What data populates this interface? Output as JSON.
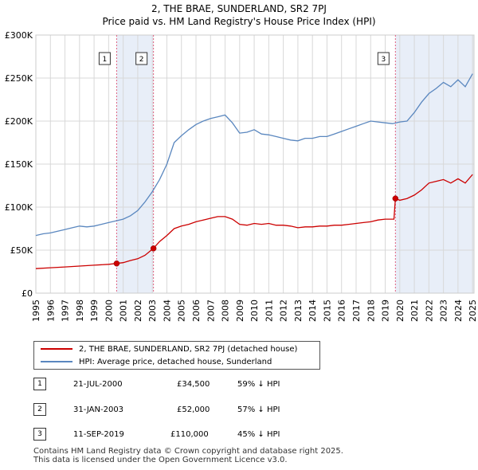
{
  "chart_data": {
    "type": "line",
    "title": "2, THE BRAE, SUNDERLAND, SR2 7PJ",
    "subtitle": "Price paid vs. HM Land Registry's House Price Index (HPI)",
    "xlabel": "",
    "ylabel": "",
    "xlim": [
      1995,
      2025.1
    ],
    "ylim": [
      0,
      300000
    ],
    "x_ticks": [
      "1995",
      "1996",
      "1997",
      "1998",
      "1999",
      "2000",
      "2001",
      "2002",
      "2003",
      "2004",
      "2005",
      "2006",
      "2007",
      "2008",
      "2009",
      "2010",
      "2011",
      "2012",
      "2013",
      "2014",
      "2015",
      "2016",
      "2017",
      "2018",
      "2019",
      "2020",
      "2021",
      "2022",
      "2023",
      "2024",
      "2025"
    ],
    "y_ticks": [
      {
        "value": 0,
        "label": "£0"
      },
      {
        "value": 50000,
        "label": "£50K"
      },
      {
        "value": 100000,
        "label": "£100K"
      },
      {
        "value": 150000,
        "label": "£150K"
      },
      {
        "value": 200000,
        "label": "£200K"
      },
      {
        "value": 250000,
        "label": "£250K"
      },
      {
        "value": 300000,
        "label": "£300K"
      }
    ],
    "grid": true,
    "series": [
      {
        "name": "2, THE BRAE, SUNDERLAND, SR2 7PJ (detached house)",
        "color": "#cc0000",
        "x": [
          1995.0,
          1996.0,
          1997.0,
          1998.0,
          1999.0,
          2000.0,
          2000.55,
          2001.0,
          2001.5,
          2002.0,
          2002.5,
          2003.08,
          2003.5,
          2004.0,
          2004.5,
          2005.0,
          2005.5,
          2006.0,
          2006.5,
          2007.0,
          2007.5,
          2008.0,
          2008.5,
          2009.0,
          2009.5,
          2010.0,
          2010.5,
          2011.0,
          2011.5,
          2012.0,
          2012.5,
          2013.0,
          2013.5,
          2014.0,
          2014.5,
          2015.0,
          2015.5,
          2016.0,
          2016.5,
          2017.0,
          2017.5,
          2018.0,
          2018.5,
          2019.0,
          2019.6,
          2019.7,
          2020.0,
          2020.5,
          2021.0,
          2021.5,
          2022.0,
          2022.5,
          2023.0,
          2023.5,
          2024.0,
          2024.5,
          2025.0
        ],
        "y": [
          28500,
          29500,
          30500,
          31500,
          32500,
          33500,
          34500,
          35500,
          38000,
          40000,
          44000,
          52000,
          60000,
          67000,
          75000,
          78000,
          80000,
          83000,
          85000,
          87000,
          89000,
          89000,
          86000,
          80000,
          79000,
          81000,
          80000,
          81000,
          79000,
          79000,
          78000,
          76000,
          77000,
          77000,
          78000,
          78000,
          79000,
          79000,
          80000,
          81000,
          82000,
          83000,
          85000,
          86000,
          86000,
          110000,
          108000,
          110000,
          114000,
          120000,
          128000,
          130000,
          132000,
          128000,
          133000,
          128000,
          138000
        ]
      },
      {
        "name": "HPI: Average price, detached house, Sunderland",
        "color": "#5a87bf",
        "x": [
          1995.0,
          1995.5,
          1996.0,
          1996.5,
          1997.0,
          1997.5,
          1998.0,
          1998.5,
          1999.0,
          1999.5,
          2000.0,
          2000.5,
          2001.0,
          2001.5,
          2002.0,
          2002.5,
          2003.0,
          2003.5,
          2004.0,
          2004.5,
          2005.0,
          2005.5,
          2006.0,
          2006.5,
          2007.0,
          2007.5,
          2008.0,
          2008.5,
          2009.0,
          2009.5,
          2010.0,
          2010.5,
          2011.0,
          2011.5,
          2012.0,
          2012.5,
          2013.0,
          2013.5,
          2014.0,
          2014.5,
          2015.0,
          2015.5,
          2016.0,
          2016.5,
          2017.0,
          2017.5,
          2018.0,
          2018.5,
          2019.0,
          2019.5,
          2020.0,
          2020.5,
          2021.0,
          2021.5,
          2022.0,
          2022.5,
          2023.0,
          2023.5,
          2024.0,
          2024.5,
          2025.0
        ],
        "y": [
          67000,
          69000,
          70000,
          72000,
          74000,
          76000,
          78000,
          77000,
          78000,
          80000,
          82000,
          84000,
          86000,
          90000,
          96000,
          106000,
          118000,
          132000,
          150000,
          175000,
          183000,
          190000,
          196000,
          200000,
          203000,
          205000,
          207000,
          198000,
          186000,
          187000,
          190000,
          185000,
          184000,
          182000,
          180000,
          178000,
          177000,
          180000,
          180000,
          182000,
          182000,
          185000,
          188000,
          191000,
          194000,
          197000,
          200000,
          199000,
          198000,
          197000,
          199000,
          200000,
          210000,
          222000,
          232000,
          238000,
          245000,
          240000,
          248000,
          240000,
          255000
        ]
      }
    ],
    "markers": [
      {
        "label": "1",
        "x": 2000.55,
        "y": 34500
      },
      {
        "label": "2",
        "x": 2003.08,
        "y": 52000
      },
      {
        "label": "3",
        "x": 2019.7,
        "y": 110000
      }
    ],
    "shaded_ranges": [
      [
        2000.55,
        2003.08
      ],
      [
        2019.7,
        2025.1
      ]
    ]
  },
  "legend": {
    "property_label": "2, THE BRAE, SUNDERLAND, SR2 7PJ (detached house)",
    "hpi_label": "HPI: Average price, detached house, Sunderland",
    "property_color": "#cc0000",
    "hpi_color": "#5a87bf"
  },
  "transactions": [
    {
      "num": "1",
      "date": "21-JUL-2000",
      "price": "£34,500",
      "hpi": "59% ↓ HPI"
    },
    {
      "num": "2",
      "date": "31-JAN-2003",
      "price": "£52,000",
      "hpi": "57% ↓ HPI"
    },
    {
      "num": "3",
      "date": "11-SEP-2019",
      "price": "£110,000",
      "hpi": "45% ↓ HPI"
    }
  ],
  "footer": {
    "line1": "Contains HM Land Registry data © Crown copyright and database right 2025.",
    "line2": "This data is licensed under the Open Government Licence v3.0."
  }
}
